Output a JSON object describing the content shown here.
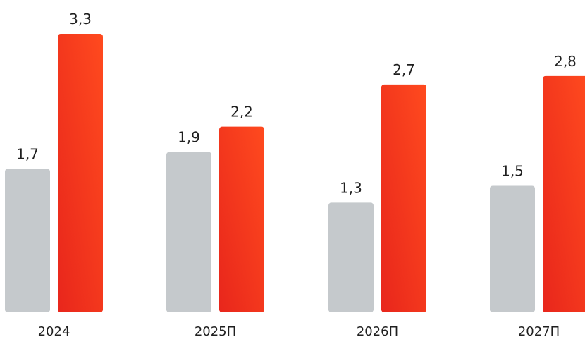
{
  "chart_data": {
    "type": "bar",
    "categories": [
      "2024",
      "2025П",
      "2026П",
      "2027П"
    ],
    "series": [
      {
        "values": [
          1.7,
          1.9,
          1.3,
          1.5
        ],
        "labels": [
          "1,7",
          "1,9",
          "1,3",
          "1,5"
        ],
        "color": "#c5c9cc"
      },
      {
        "values": [
          3.3,
          2.2,
          2.7,
          2.8
        ],
        "labels": [
          "3,3",
          "2,2",
          "2,7",
          "2,8"
        ],
        "color_start": "#e8261c",
        "color_end": "#ff4a1e"
      }
    ],
    "title": "",
    "xlabel": "",
    "ylabel": "",
    "ylim": [
      0,
      3.3
    ],
    "grid": false,
    "legend": "none"
  }
}
